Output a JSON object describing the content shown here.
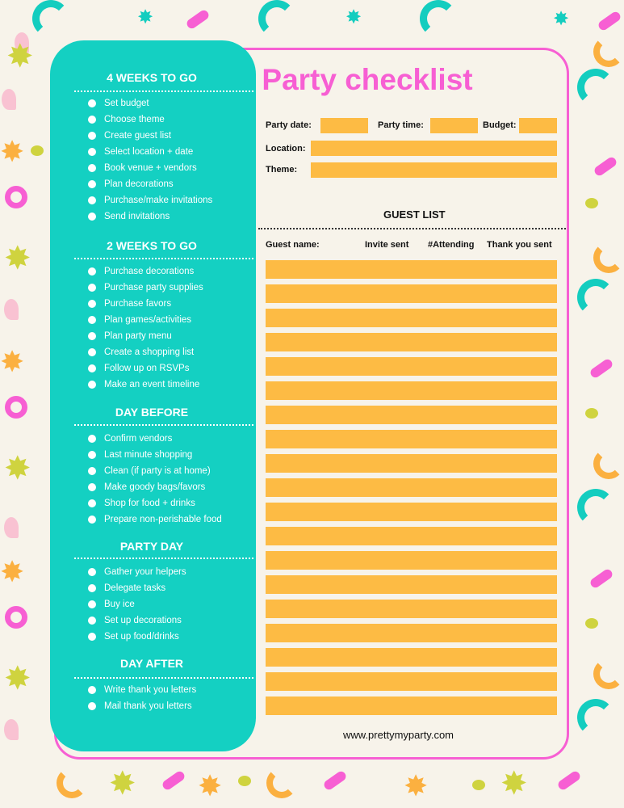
{
  "title": "Party checklist",
  "colors": {
    "teal": "#14d0c2",
    "pink": "#f75fd3",
    "orange": "#fdbb44",
    "background": "#f7f3ea"
  },
  "fields": {
    "party_date": "Party date:",
    "party_time": "Party time:",
    "budget": "Budget:",
    "location": "Location:",
    "theme": "Theme:"
  },
  "guest_list": {
    "heading": "GUEST LIST",
    "columns": [
      "Guest name:",
      "Invite sent",
      "#Attending",
      "Thank you sent"
    ],
    "row_count": 19
  },
  "sections": [
    {
      "heading": "4 WEEKS TO GO",
      "items": [
        "Set budget",
        "Choose theme",
        "Create guest list",
        "Select location + date",
        "Book venue + vendors",
        "Plan decorations",
        "Purchase/make invitations",
        "Send invitations"
      ]
    },
    {
      "heading": "2 WEEKS TO GO",
      "items": [
        "Purchase decorations",
        "Purchase party supplies",
        "Purchase favors",
        "Plan games/activities",
        "Plan party menu",
        "Create a shopping list",
        "Follow up on RSVPs",
        "Make an event timeline"
      ]
    },
    {
      "heading": "DAY BEFORE",
      "items": [
        "Confirm vendors",
        "Last minute shopping",
        "Clean (if party is at home)",
        "Make goody bags/favors",
        "Shop for food + drinks",
        "Prepare non-perishable food"
      ]
    },
    {
      "heading": "PARTY DAY",
      "items": [
        "Gather your helpers",
        "Delegate tasks",
        "Buy ice",
        "Set up decorations",
        "Set up food/drinks"
      ]
    },
    {
      "heading": "DAY AFTER",
      "items": [
        "Write thank you letters",
        "Mail thank you letters"
      ]
    }
  ],
  "footer": "www.prettymyparty.com"
}
